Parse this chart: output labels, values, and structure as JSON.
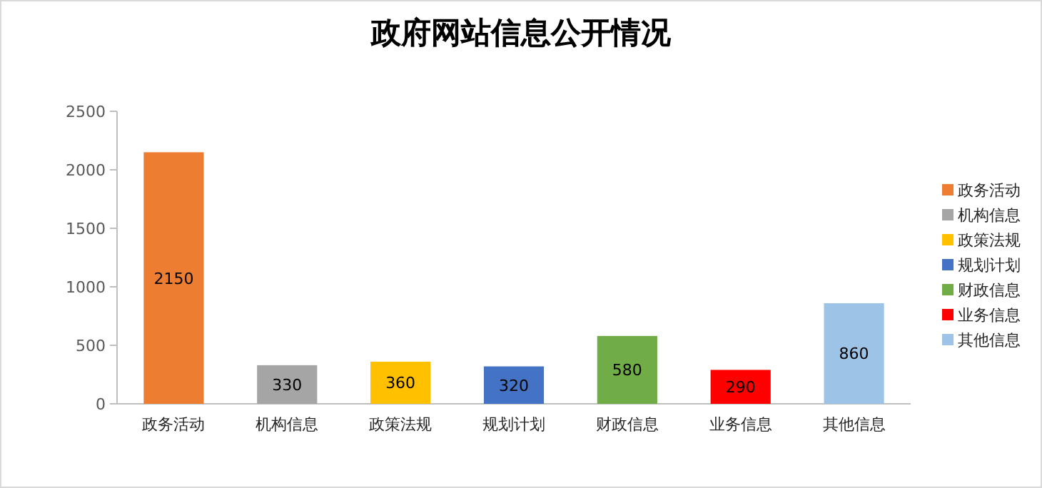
{
  "chart_data": {
    "type": "bar",
    "title": "政府网站信息公开情况",
    "stacked": true,
    "categories": [
      "政务活动",
      "机构信息",
      "政策法规",
      "规划计划",
      "财政信息",
      "业务信息",
      "其他信息"
    ],
    "series": [
      {
        "name": "政务活动",
        "color": "#ed7d31",
        "values": [
          2150,
          null,
          null,
          null,
          null,
          null,
          null
        ]
      },
      {
        "name": "机构信息",
        "color": "#a5a5a5",
        "values": [
          null,
          330,
          null,
          null,
          null,
          null,
          null
        ]
      },
      {
        "name": "政策法规",
        "color": "#ffc000",
        "values": [
          null,
          null,
          360,
          null,
          null,
          null,
          null
        ]
      },
      {
        "name": "规划计划",
        "color": "#4472c4",
        "values": [
          null,
          null,
          null,
          320,
          null,
          null,
          null
        ]
      },
      {
        "name": "财政信息",
        "color": "#70ad47",
        "values": [
          null,
          null,
          null,
          null,
          580,
          null,
          null
        ]
      },
      {
        "name": "业务信息",
        "color": "#ff0000",
        "values": [
          null,
          null,
          null,
          null,
          null,
          290,
          null
        ]
      },
      {
        "name": "其他信息",
        "color": "#9dc3e6",
        "values": [
          null,
          null,
          null,
          null,
          null,
          null,
          860
        ]
      }
    ],
    "ylim": [
      0,
      2500
    ],
    "yticks": [
      0,
      500,
      1000,
      1500,
      2000,
      2500
    ],
    "data_labels": true,
    "legend": "right"
  }
}
